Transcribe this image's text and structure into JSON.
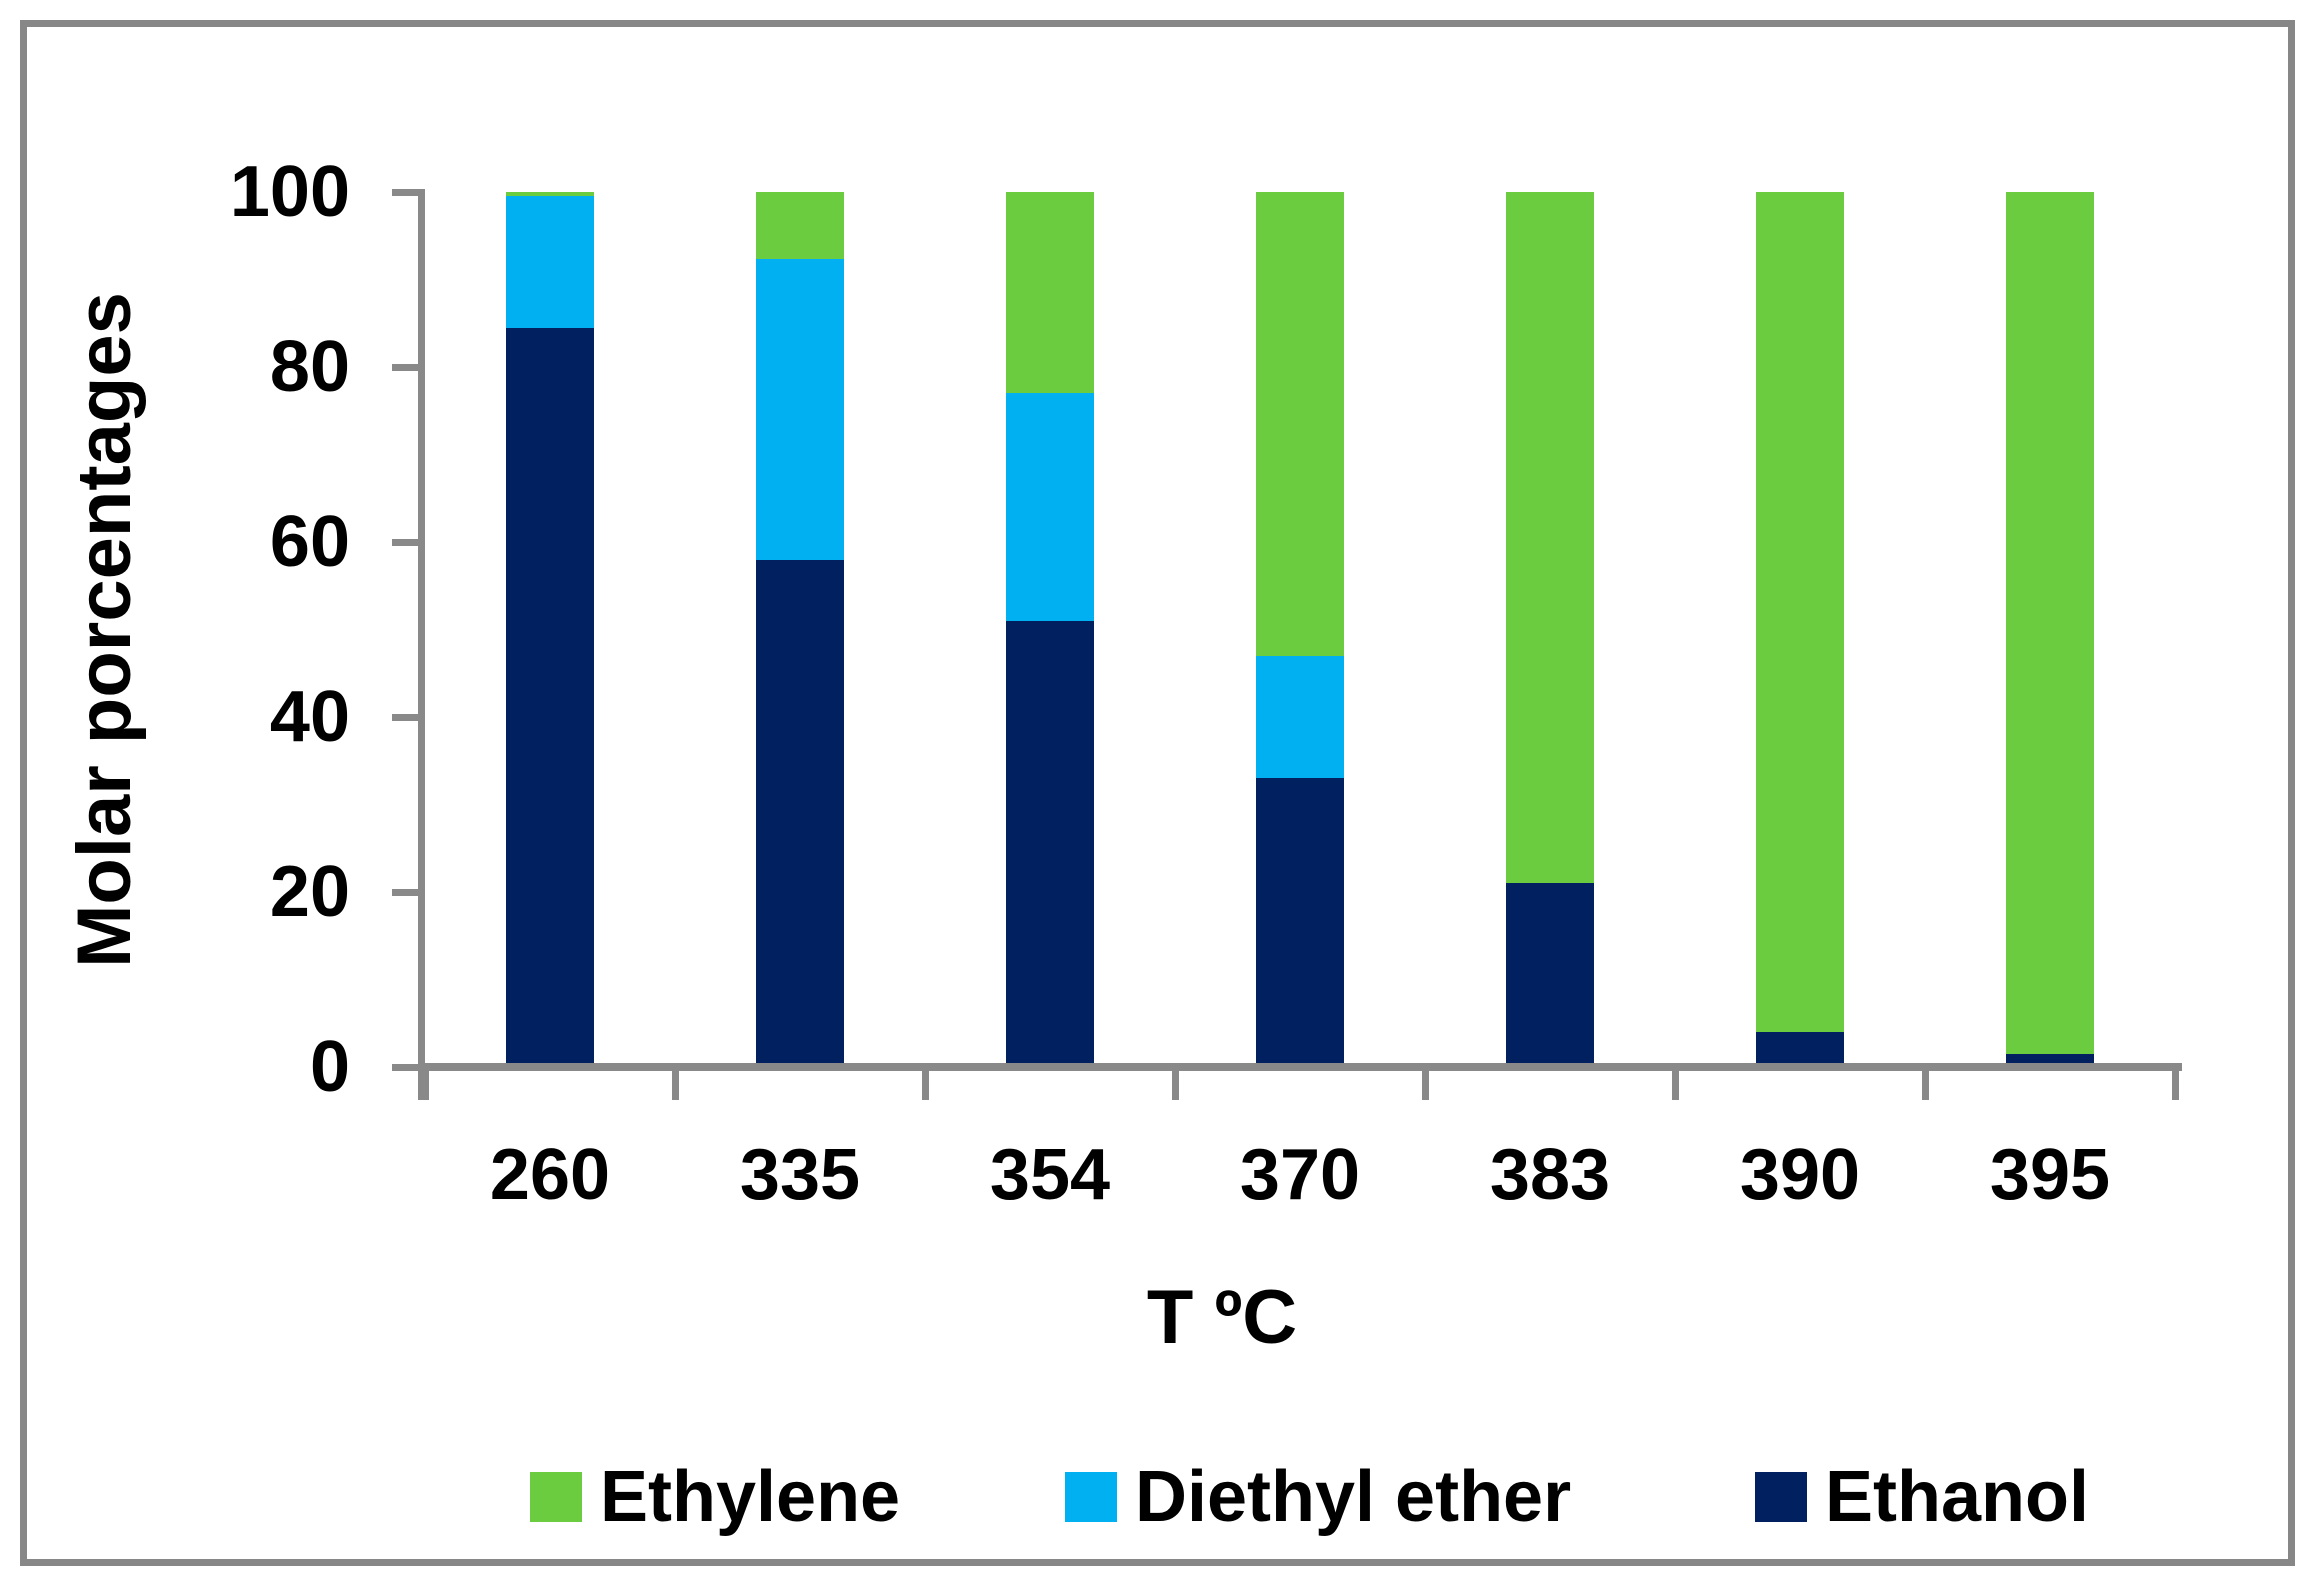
{
  "chart_data": {
    "type": "bar",
    "stacked": true,
    "categories": [
      "260",
      "335",
      "354",
      "370",
      "383",
      "390",
      "395"
    ],
    "series": [
      {
        "name": "Ethanol",
        "color": "#002060",
        "values": [
          84.5,
          58.0,
          51.0,
          33.0,
          21.0,
          4.0,
          1.5
        ]
      },
      {
        "name": "Diethyl ether",
        "color": "#00B0F0",
        "values": [
          15.1,
          34.3,
          26.0,
          14.0,
          0.0,
          0.0,
          0.0
        ]
      },
      {
        "name": "Ethylene",
        "color": "#6CCC40",
        "values": [
          0.4,
          7.7,
          23.0,
          53.0,
          79.0,
          96.0,
          98.5
        ]
      }
    ],
    "title": "",
    "xlabel": "T ºC",
    "ylabel": "Molar porcentages",
    "ylim": [
      0,
      100
    ],
    "yticks": [
      0,
      20,
      40,
      60,
      80,
      100
    ],
    "grid": false,
    "legend_position": "bottom",
    "legend_order": [
      "Ethylene",
      "Diethyl ether",
      "Ethanol"
    ]
  },
  "colors": {
    "axis": "#898989",
    "frame_border": "#878787",
    "background": "#FFFFFF",
    "text": "#000000"
  }
}
